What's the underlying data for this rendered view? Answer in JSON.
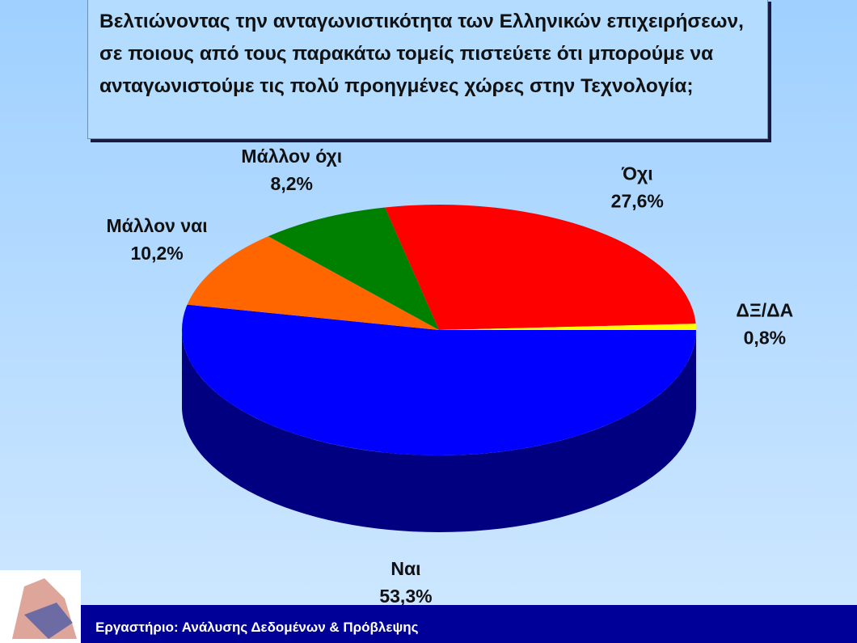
{
  "chart_data": {
    "type": "pie3d",
    "title": "Βελτιώνοντας την ανταγωνιστικότητα των Ελληνικών επιχειρήσεων, σε ποιους από τους παρακάτω τομείς πιστεύετε ότι μπορούμε να ανταγωνιστούμε τις πολύ προηγμένες χώρες στην Τεχνολογία;",
    "categories": [
      "Ναι",
      "Μάλλον ναι",
      "Μάλλον όχι",
      "Όχι",
      "ΔΞ/ΔΑ"
    ],
    "values": [
      53.3,
      10.2,
      8.2,
      27.6,
      0.8
    ],
    "value_labels": [
      "53,3%",
      "10,2%",
      "8,2%",
      "27,6%",
      "0,8%"
    ],
    "colors": [
      "#0000ff",
      "#ff6600",
      "#008000",
      "#ff0000",
      "#ffff00"
    ]
  },
  "footer": "Εργαστήριο: Ανάλυσης Δεδομένων & Πρόβλεψης"
}
